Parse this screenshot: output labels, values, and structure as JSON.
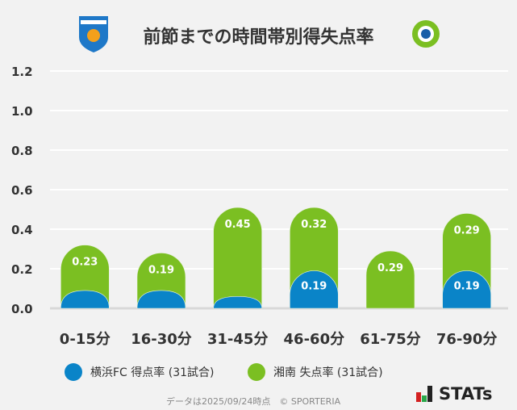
{
  "chart_data": {
    "type": "bar",
    "stacked": true,
    "title": "前節までの時間帯別得失点率",
    "categories": [
      "0-15分",
      "16-30分",
      "31-45分",
      "46-60分",
      "61-75分",
      "76-90分"
    ],
    "series": [
      {
        "name": "横浜FC 得点率 (31試合)",
        "color": "#0a84c8",
        "values": [
          0.09,
          0.09,
          0.06,
          0.19,
          0,
          0.19
        ],
        "labels": [
          "",
          "",
          "",
          "0.19",
          "",
          "0.19"
        ]
      },
      {
        "name": "湘南 失点率 (31試合)",
        "color": "#7bbf22",
        "values": [
          0.23,
          0.19,
          0.45,
          0.32,
          0.29,
          0.29
        ],
        "labels": [
          "0.23",
          "0.19",
          "0.45",
          "0.32",
          "0.29",
          "0.29"
        ]
      }
    ],
    "yticks": [
      "0.0",
      "0.2",
      "0.4",
      "0.6",
      "0.8",
      "1.0",
      "1.2"
    ],
    "ylim": [
      0,
      1.2
    ],
    "grid": true,
    "legend": "bottom"
  },
  "footer": {
    "note": "データは2025/09/24時点　© SPORTERIA",
    "brand": "STATs"
  },
  "logos": {
    "home": "YOKOHAMA",
    "away": "Shonan Bellmare"
  }
}
